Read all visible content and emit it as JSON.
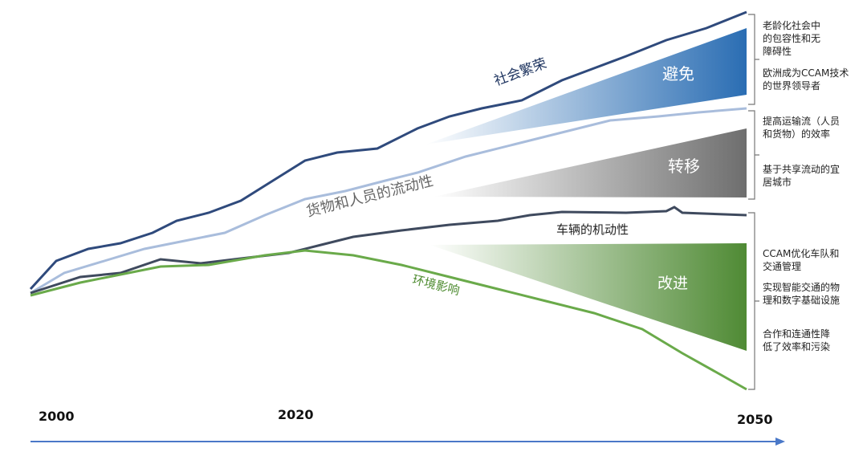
{
  "curves": {
    "prosperity": "社会繁荣",
    "mobility": "货物和人员的流动性",
    "vehicle": "车辆的机动性",
    "environment": "环境影响"
  },
  "strategies": {
    "avoid": "避免",
    "shift": "转移",
    "improve": "改进"
  },
  "years": [
    "2000",
    "2020",
    "2050"
  ],
  "notes": [
    {
      "items": [
        {
          "lines": [
            "老龄化社会中",
            "的包容性和无",
            "障碍性"
          ]
        },
        {
          "lines": [
            "欧洲成为CCAM技术",
            "的世界领导者"
          ]
        }
      ]
    },
    {
      "items": [
        {
          "lines": [
            "提高运输流（人员",
            "和货物）的效率"
          ]
        },
        {
          "lines": [
            "基于共享流动的宜",
            "居城市"
          ]
        }
      ]
    },
    {
      "items": [
        {
          "lines": [
            "CCAM优化车队和",
            "交通管理"
          ]
        },
        {
          "lines": [
            "实现智能交通的物",
            "理和数字基础设施"
          ]
        },
        {
          "lines": [
            "合作和连通性降",
            "低了效率和污染"
          ]
        }
      ]
    }
  ]
}
